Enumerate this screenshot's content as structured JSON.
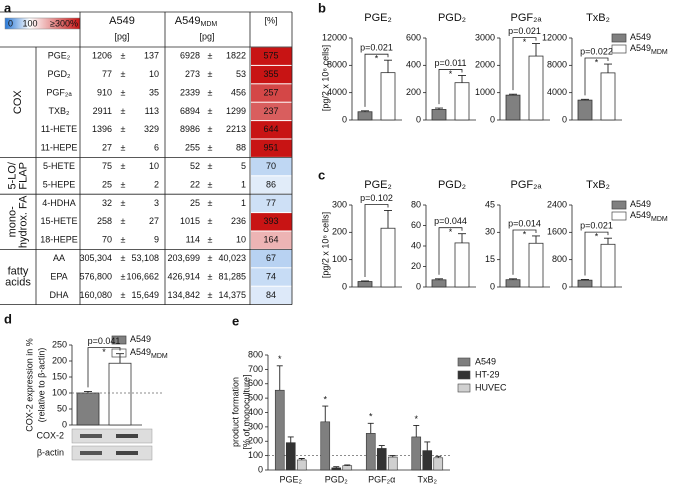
{
  "table": {
    "panel": "a",
    "colorbar": {
      "ticks": [
        0,
        100,
        {
          "value": 300,
          "label": "≥300%"
        }
      ]
    },
    "columns": {
      "a549": "A549",
      "mdm": "A549",
      "mdm_sub": "MDM",
      "unit": "[pg]",
      "percent": "[%]"
    },
    "plus_minus": "±",
    "groups": [
      {
        "label": [
          "COX"
        ],
        "vertical": true,
        "rows": [
          {
            "name": "PGE₂",
            "a549": [
              "1206",
              "137"
            ],
            "mdm": [
              "6928",
              "1822"
            ],
            "percent": 575
          },
          {
            "name": "PGD₂",
            "a549": [
              "77",
              "10"
            ],
            "mdm": [
              "273",
              "53"
            ],
            "percent": 355
          },
          {
            "name": "PGF₂ₐ",
            "a549": [
              "910",
              "35"
            ],
            "mdm": [
              "2339",
              "456"
            ],
            "percent": 257
          },
          {
            "name": "TXB₂",
            "a549": [
              "2911",
              "113"
            ],
            "mdm": [
              "6894",
              "1299"
            ],
            "percent": 237
          },
          {
            "name": "11-HETE",
            "a549": [
              "1396",
              "329"
            ],
            "mdm": [
              "8986",
              "2213"
            ],
            "percent": 644
          },
          {
            "name": "11-HEPE",
            "a549": [
              "27",
              "6"
            ],
            "mdm": [
              "255",
              "88"
            ],
            "percent": 951
          }
        ]
      },
      {
        "label": [
          "5-LO/",
          "FLAP"
        ],
        "vertical": true,
        "rows": [
          {
            "name": "5-HETE",
            "a549": [
              "75",
              "10"
            ],
            "mdm": [
              "52",
              "5"
            ],
            "percent": 70
          },
          {
            "name": "5-HEPE",
            "a549": [
              "25",
              "2"
            ],
            "mdm": [
              "22",
              "1"
            ],
            "percent": 86
          }
        ]
      },
      {
        "label": [
          "mono-",
          "hydrox. FA"
        ],
        "vertical": true,
        "rows": [
          {
            "name": "4-HDHA",
            "a549": [
              "32",
              "3"
            ],
            "mdm": [
              "25",
              "1"
            ],
            "percent": 77
          },
          {
            "name": "15-HETE",
            "a549": [
              "258",
              "27"
            ],
            "mdm": [
              "1015",
              "236"
            ],
            "percent": 393
          },
          {
            "name": "18-HEPE",
            "a549": [
              "70",
              "9"
            ],
            "mdm": [
              "114",
              "10"
            ],
            "percent": 164
          }
        ]
      },
      {
        "label": [
          "fatty",
          "acids"
        ],
        "vertical": false,
        "rows": [
          {
            "name": "AA",
            "a549": [
              "305,304",
              "53,108"
            ],
            "mdm": [
              "203,699",
              "40,023"
            ],
            "percent": 67
          },
          {
            "name": "EPA",
            "a549": [
              "576,800",
              "106,662"
            ],
            "mdm": [
              "426,914",
              "81,285"
            ],
            "percent": 74
          },
          {
            "name": "DHA",
            "a549": [
              "160,080",
              "15,649"
            ],
            "mdm": [
              "134,842",
              "14,375"
            ],
            "percent": 84
          }
        ]
      }
    ]
  },
  "chart_data": [
    {
      "type": "bar",
      "panel": "b",
      "ylabel": "[pg/2 x 10⁶ cells]",
      "legend": "upper right",
      "series": [
        {
          "name": "A549",
          "color": "#808080"
        },
        {
          "name": "A549",
          "name_sub": "MDM",
          "color": "#ffffff"
        }
      ],
      "subplots": [
        {
          "title": "PGE₂",
          "ylim": [
            0,
            12000
          ],
          "yticks": [
            0,
            4000,
            8000,
            12000
          ],
          "values": [
            1206,
            6928
          ],
          "errors": [
            137,
            1822
          ],
          "p_value": "p=0.021",
          "significance": "*"
        },
        {
          "title": "PGD₂",
          "ylim": [
            0,
            600
          ],
          "yticks": [
            0,
            200,
            400,
            600
          ],
          "values": [
            77,
            273
          ],
          "errors": [
            10,
            53
          ],
          "p_value": "p=0.011",
          "significance": "*"
        },
        {
          "title": "PGF₂ₐ",
          "ylim": [
            0,
            3000
          ],
          "yticks": [
            0,
            1000,
            2000,
            3000
          ],
          "values": [
            910,
            2339
          ],
          "errors": [
            35,
            456
          ],
          "p_value": "p=0.021",
          "significance": "*"
        },
        {
          "title": "TxB₂",
          "ylim": [
            0,
            12000
          ],
          "yticks": [
            0,
            4000,
            8000,
            12000
          ],
          "values": [
            2911,
            6894
          ],
          "errors": [
            113,
            1299
          ],
          "p_value": "p=0.022",
          "significance": "*"
        }
      ]
    },
    {
      "type": "bar",
      "panel": "c",
      "ylabel": "[pg/2 x 10⁶ cells]",
      "legend": "upper right",
      "series": [
        {
          "name": "A549",
          "color": "#808080"
        },
        {
          "name": "A549",
          "name_sub": "MDM",
          "color": "#ffffff"
        }
      ],
      "subplots": [
        {
          "title": "PGE₂",
          "ylim": [
            0,
            300
          ],
          "yticks": [
            0,
            100,
            200,
            300
          ],
          "values": [
            20,
            215
          ],
          "errors": [
            2,
            65
          ],
          "p_value": "p=0.102"
        },
        {
          "title": "PGD₂",
          "ylim": [
            0,
            80
          ],
          "yticks": [
            0,
            20,
            40,
            60,
            80
          ],
          "values": [
            7,
            43
          ],
          "errors": [
            1,
            9
          ],
          "p_value": "p=0.044",
          "significance": "*"
        },
        {
          "title": "PGF₂ₐ",
          "ylim": [
            0,
            45
          ],
          "yticks": [
            0,
            15,
            30,
            45
          ],
          "values": [
            4,
            24
          ],
          "errors": [
            0.5,
            4
          ],
          "p_value": "p=0.014",
          "significance": "*"
        },
        {
          "title": "TxB₂",
          "ylim": [
            0,
            2400
          ],
          "yticks": [
            0,
            800,
            1600,
            2400
          ],
          "values": [
            200,
            1250
          ],
          "errors": [
            20,
            180
          ],
          "p_value": "p=0.021",
          "significance": "*"
        }
      ]
    },
    {
      "type": "bar",
      "panel": "d",
      "ylabel": [
        "COX-2 expression in %",
        "(relative to β-actin)"
      ],
      "legend": "upper right",
      "series": [
        {
          "name": "A549",
          "color": "#808080"
        },
        {
          "name": "A549",
          "name_sub": "MDM",
          "color": "#ffffff"
        }
      ],
      "subplots": [
        {
          "ylim": [
            0,
            250
          ],
          "yticks": [
            0,
            50,
            100,
            150,
            200,
            250
          ],
          "values": [
            100,
            193
          ],
          "errors": [
            5,
            30
          ],
          "p_value": "p=0.041",
          "significance": "*",
          "reference_line": 100
        }
      ],
      "blot_labels": [
        "COX-2",
        "β-actin"
      ]
    },
    {
      "type": "grouped_bar",
      "panel": "e",
      "ylabel": [
        "product formation",
        "[% of monoculture]"
      ],
      "legend": "upper right",
      "categories": [
        "PGE₂",
        "PGD₂",
        "PGF₂α",
        "TxB₂"
      ],
      "ylim": [
        0,
        800
      ],
      "yticks": [
        0,
        100,
        200,
        300,
        400,
        500,
        600,
        700,
        800
      ],
      "reference_line": 100,
      "series": [
        {
          "name": "A549",
          "color": "#7f7f7f",
          "values": [
            555,
            335,
            255,
            230
          ],
          "errors": [
            170,
            110,
            70,
            80
          ],
          "significance": [
            "*",
            "*",
            "*",
            "*"
          ]
        },
        {
          "name": "HT-29",
          "color": "#333333",
          "values": [
            190,
            15,
            150,
            135
          ],
          "errors": [
            40,
            8,
            20,
            60
          ]
        },
        {
          "name": "HUVEC",
          "color": "#d0d0d0",
          "values": [
            70,
            30,
            90,
            85
          ],
          "errors": [
            10,
            5,
            10,
            10
          ]
        }
      ]
    }
  ]
}
